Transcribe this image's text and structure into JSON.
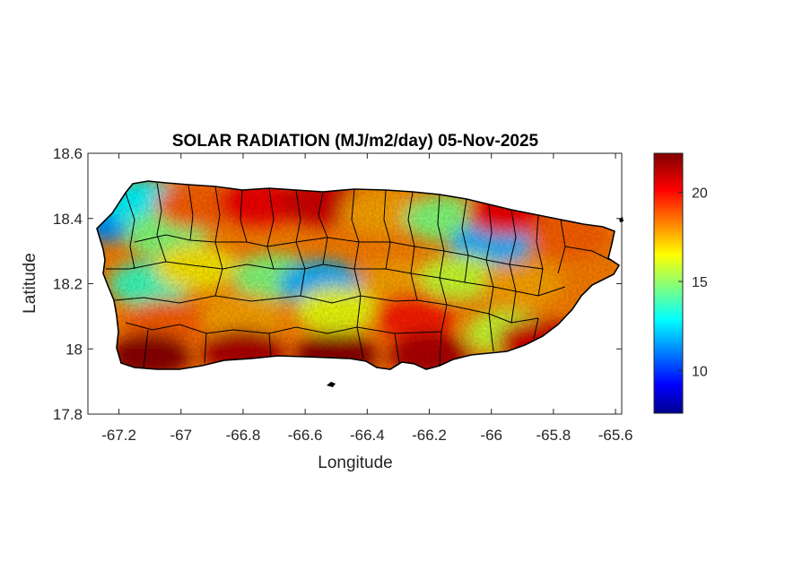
{
  "chart_data": {
    "type": "heatmap",
    "title": "SOLAR RADIATION (MJ/m2/day) 05-Nov-2025",
    "xlabel": "Longitude",
    "ylabel": "Latitude",
    "xlim": [
      -67.3,
      -65.58
    ],
    "ylim": [
      17.8,
      18.6
    ],
    "x_ticks": [
      -67.2,
      -67,
      -66.8,
      -66.6,
      -66.4,
      -66.2,
      -66,
      -65.8,
      -65.6
    ],
    "x_tick_labels": [
      "-67.2",
      "-67",
      "-66.8",
      "-66.6",
      "-66.4",
      "-66.2",
      "-66",
      "-65.8",
      "-65.6"
    ],
    "y_ticks": [
      17.8,
      18,
      18.2,
      18.4,
      18.6
    ],
    "y_tick_labels": [
      "17.8",
      "18",
      "18.2",
      "18.4",
      "18.6"
    ],
    "grid": false,
    "colormap": "jet",
    "colorbar": {
      "range": [
        7.6,
        22.2
      ],
      "ticks": [
        10,
        15,
        20
      ],
      "tick_labels": [
        "10",
        "15",
        "20"
      ],
      "placement": "right"
    },
    "region_values": [
      {
        "lon": -67.22,
        "lat": 18.4,
        "value": 11.5
      },
      {
        "lon": -67.12,
        "lat": 18.45,
        "value": 13
      },
      {
        "lon": -67.05,
        "lat": 18.35,
        "value": 15
      },
      {
        "lon": -66.95,
        "lat": 18.44,
        "value": 19
      },
      {
        "lon": -66.75,
        "lat": 18.45,
        "value": 20.5
      },
      {
        "lon": -66.55,
        "lat": 18.45,
        "value": 21
      },
      {
        "lon": -66.35,
        "lat": 18.42,
        "value": 18
      },
      {
        "lon": -66.15,
        "lat": 18.4,
        "value": 15
      },
      {
        "lon": -66.0,
        "lat": 18.32,
        "value": 12
      },
      {
        "lon": -65.95,
        "lat": 18.42,
        "value": 20.5
      },
      {
        "lon": -65.75,
        "lat": 18.35,
        "value": 19
      },
      {
        "lon": -67.1,
        "lat": 18.2,
        "value": 14
      },
      {
        "lon": -66.95,
        "lat": 18.25,
        "value": 17
      },
      {
        "lon": -66.7,
        "lat": 18.22,
        "value": 15
      },
      {
        "lon": -66.55,
        "lat": 18.2,
        "value": 12
      },
      {
        "lon": -66.3,
        "lat": 18.2,
        "value": 18
      },
      {
        "lon": -66.1,
        "lat": 18.22,
        "value": 16
      },
      {
        "lon": -65.9,
        "lat": 18.2,
        "value": 18
      },
      {
        "lon": -67.05,
        "lat": 18.08,
        "value": 19
      },
      {
        "lon": -66.8,
        "lat": 18.1,
        "value": 18
      },
      {
        "lon": -66.5,
        "lat": 18.12,
        "value": 16.5
      },
      {
        "lon": -66.25,
        "lat": 18.1,
        "value": 20
      },
      {
        "lon": -65.95,
        "lat": 18.05,
        "value": 16
      },
      {
        "lon": -67.1,
        "lat": 17.98,
        "value": 22
      },
      {
        "lon": -66.8,
        "lat": 17.99,
        "value": 21.5
      },
      {
        "lon": -66.5,
        "lat": 17.98,
        "value": 22
      },
      {
        "lon": -66.2,
        "lat": 17.98,
        "value": 21.5
      },
      {
        "lon": -65.85,
        "lat": 18.02,
        "value": 21
      }
    ]
  }
}
